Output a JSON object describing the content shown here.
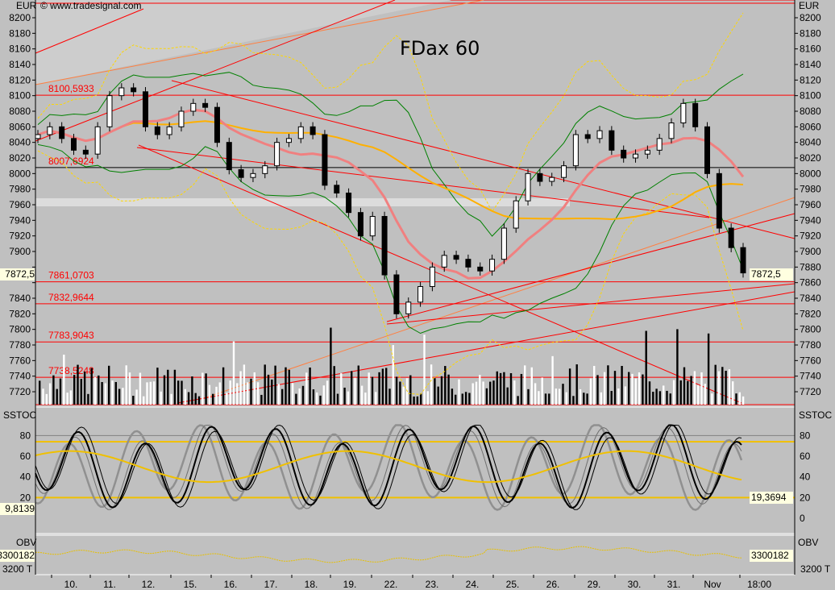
{
  "chart_data": {
    "type": "candlestick",
    "title": "FDax 60",
    "watermark": "© www.tradesignal.com",
    "currency_label": "EUR",
    "price_axis": {
      "ylim": [
        7705,
        8225
      ],
      "ticks": [
        7720,
        7740,
        7760,
        7780,
        7800,
        7820,
        7840,
        7860,
        7880,
        7900,
        7920,
        7940,
        7960,
        7980,
        8000,
        8020,
        8040,
        8060,
        8080,
        8100,
        8120,
        8140,
        8160,
        8180,
        8200
      ]
    },
    "x_tick_labels": [
      "10.",
      "11.",
      "12.",
      "15.",
      "16.",
      "17.",
      "18.",
      "19.",
      "22.",
      "23.",
      "24.",
      "25.",
      "26.",
      "29.",
      "30.",
      "31.",
      "Nov",
      "18:00"
    ],
    "closes": [
      8050,
      8060,
      8045,
      8030,
      8025,
      8060,
      8100,
      8110,
      8105,
      8060,
      8050,
      8060,
      8080,
      8090,
      8085,
      8040,
      8005,
      7995,
      8000,
      8010,
      8040,
      8045,
      8060,
      8050,
      7985,
      7975,
      7950,
      7920,
      7945,
      7870,
      7820,
      7835,
      7855,
      7880,
      7895,
      7890,
      7880,
      7875,
      7890,
      7930,
      7965,
      8000,
      7990,
      7995,
      8010,
      8050,
      8045,
      8055,
      8030,
      8020,
      8025,
      8030,
      8045,
      8065,
      8090,
      8060,
      8000,
      7930,
      7905,
      7872.5
    ],
    "last_price": "7872,5",
    "levels": [
      {
        "value": 8100.5933,
        "label": "8100,5933",
        "color": "#ff0000"
      },
      {
        "value": 8007.6924,
        "label": "8007,6924",
        "color": "#000000"
      },
      {
        "value": 7861.0703,
        "label": "7861,0703",
        "color": "#ff0000"
      },
      {
        "value": 7832.9644,
        "label": "7832,9644",
        "color": "#ff0000"
      },
      {
        "value": 7783.9043,
        "label": "7783,9043",
        "color": "#ff0000"
      },
      {
        "value": 7738.5248,
        "label": "7738,5248",
        "color": "#ff0000"
      }
    ],
    "sstoc": {
      "label": "SSTOC",
      "ticks": [
        0,
        20,
        40,
        60,
        80
      ],
      "right_ticks": [
        0,
        20,
        40,
        60,
        80
      ],
      "bands": [
        20,
        74
      ],
      "left_value": "9,8139",
      "right_value": "19,3694"
    },
    "obv": {
      "label": "OBV",
      "value": "3300182",
      "unit_label": "3200 T"
    },
    "colors": {
      "background": "#c0c0c0",
      "level": "#ff0000",
      "ma_fast": "#f08080",
      "ma_slow": "#ffb000",
      "band_inner": "#008000",
      "band_outer": "#ffd700",
      "stoch_band": "#f0c000",
      "obv_line": "#e8c000",
      "channel": "#ff7f40"
    }
  }
}
